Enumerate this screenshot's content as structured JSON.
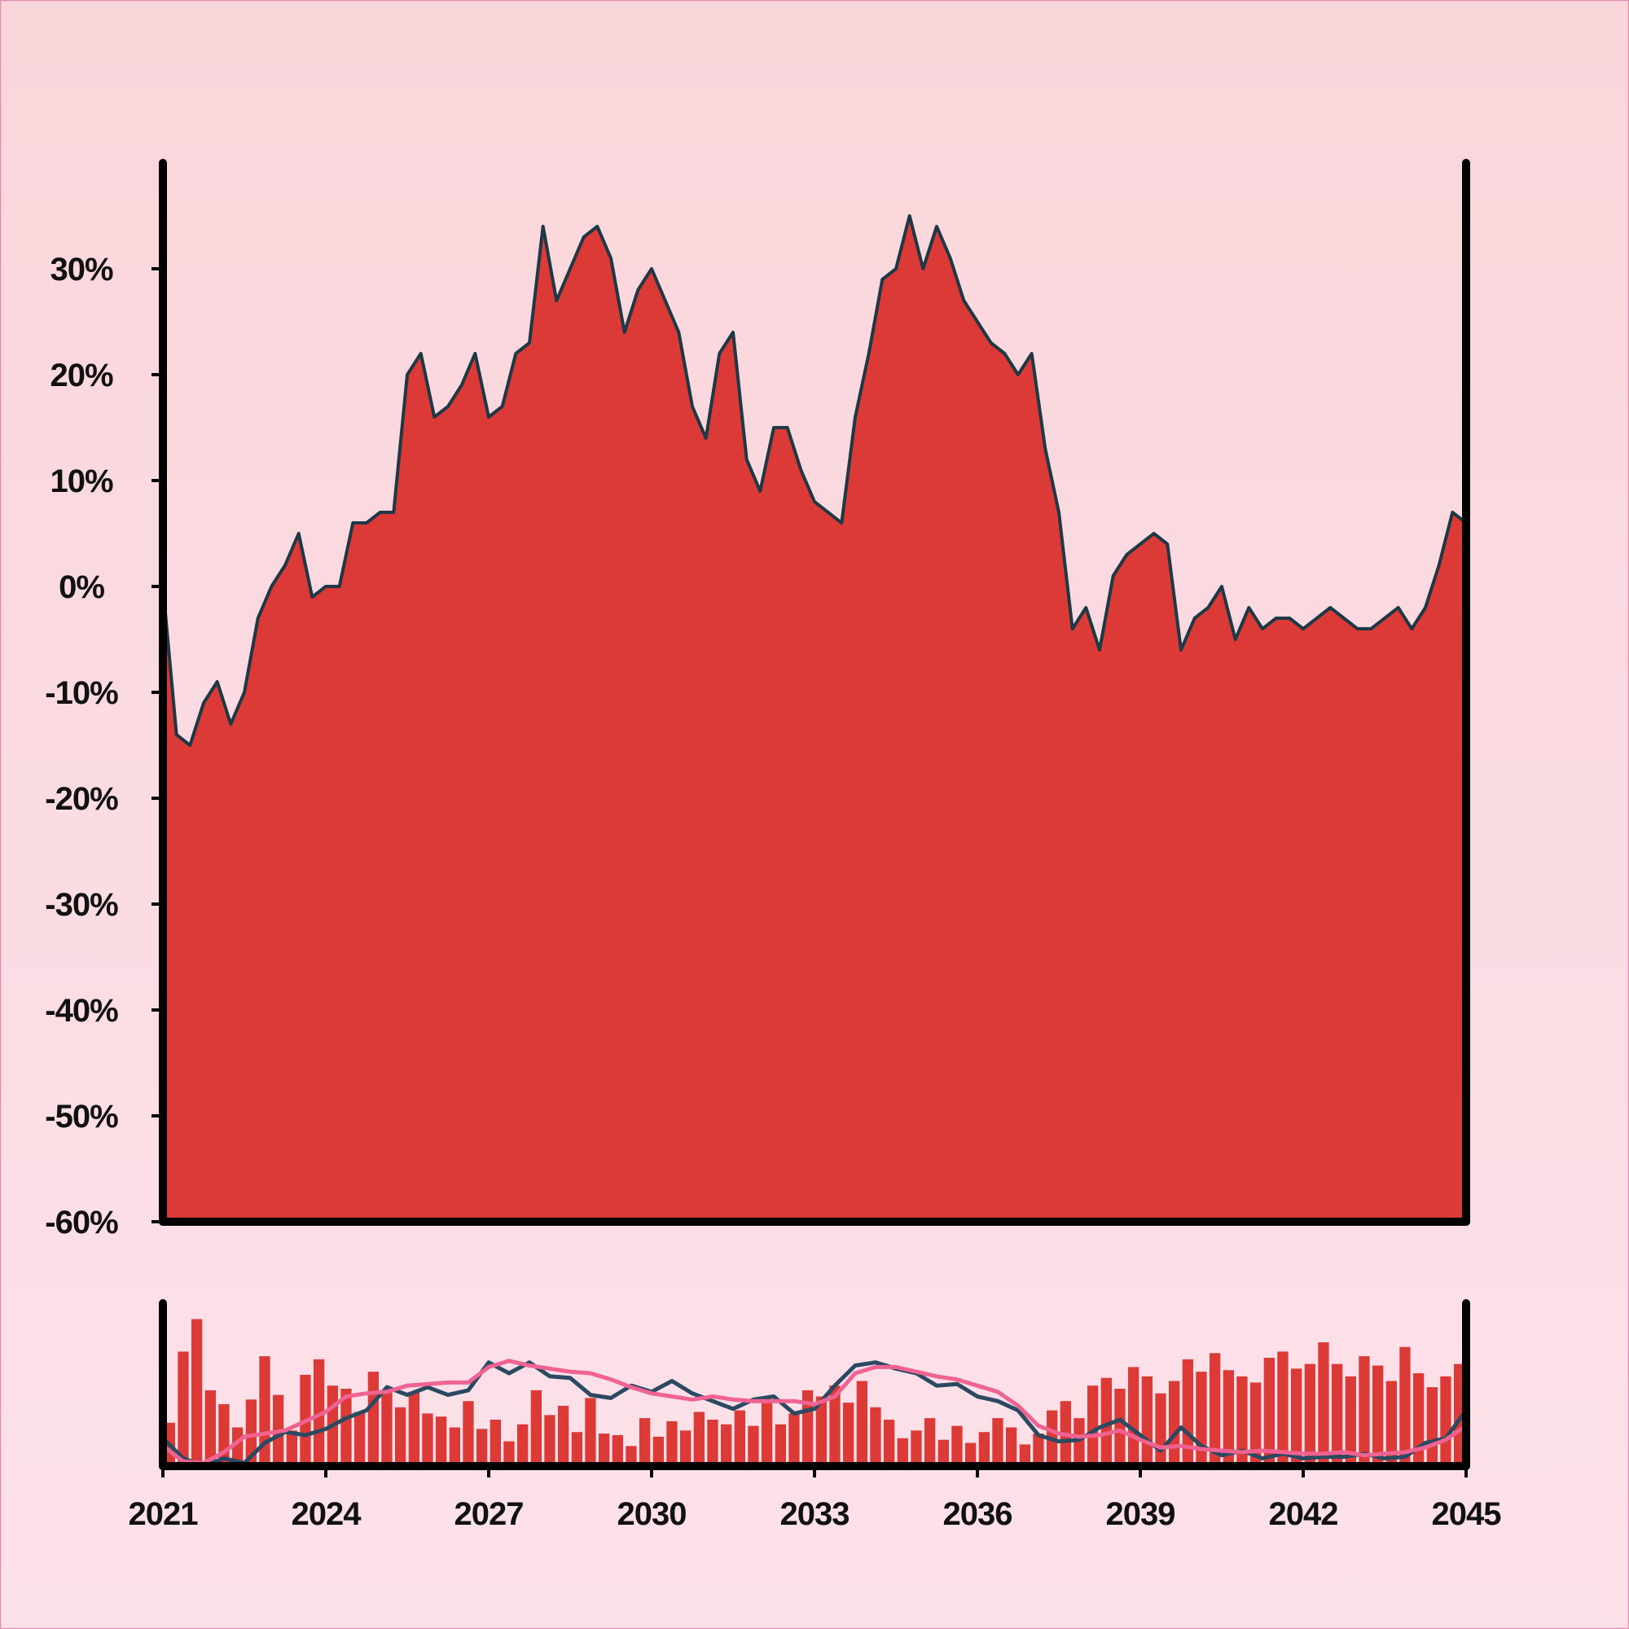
{
  "chart_data": [
    {
      "type": "area",
      "title": "",
      "xlabel": "",
      "ylabel": "",
      "xlim": [
        2021,
        2045
      ],
      "ylim": [
        -60,
        40
      ],
      "y_unit": "%",
      "y_ticks": [
        "-60%",
        "-50%",
        "-40%",
        "-30%",
        "-20%",
        "-10%",
        "0%",
        "10%",
        "20%",
        "30%"
      ],
      "y_tick_values": [
        -60,
        -50,
        -40,
        -30,
        -20,
        -10,
        0,
        10,
        20,
        30
      ],
      "grid": false,
      "legend": "none",
      "fill_color": "#db3a36",
      "line_color": "#1e3845",
      "series": [
        {
          "x": [
            2021.0,
            2021.25,
            2021.5,
            2021.75,
            2022.0,
            2022.25,
            2022.5,
            2022.75,
            2023.0,
            2023.25,
            2023.5,
            2023.75,
            2024.0,
            2024.25,
            2024.5,
            2024.75,
            2025.0,
            2025.25,
            2025.5,
            2025.75,
            2026.0,
            2026.25,
            2026.5,
            2026.75,
            2027.0,
            2027.25,
            2027.5,
            2027.75,
            2028.0,
            2028.25,
            2028.5,
            2028.75,
            2029.0,
            2029.25,
            2029.5,
            2029.75,
            2030.0,
            2030.25,
            2030.5,
            2030.75,
            2031.0,
            2031.25,
            2031.5,
            2031.75,
            2032.0,
            2032.25,
            2032.5,
            2032.75,
            2033.0,
            2033.25,
            2033.5,
            2033.75,
            2034.0,
            2034.25,
            2034.5,
            2034.75,
            2035.0,
            2035.25,
            2035.5,
            2035.75,
            2036.0,
            2036.25,
            2036.5,
            2036.75,
            2037.0,
            2037.25,
            2037.5,
            2037.75,
            2038.0,
            2038.25,
            2038.5,
            2038.75,
            2039.0,
            2039.25,
            2039.5,
            2039.75,
            2040.0,
            2040.25,
            2040.5,
            2040.75,
            2041.0,
            2041.25,
            2041.5,
            2041.75,
            2042.0,
            2042.25,
            2042.5,
            2042.75,
            2043.0,
            2043.25,
            2043.5,
            2043.75,
            2044.0,
            2044.25,
            2044.5,
            2044.75,
            2045.0
          ],
          "values": [
            0,
            -14,
            -15,
            -11,
            -9,
            -13,
            -10,
            -3,
            0,
            2,
            5,
            -1,
            0,
            0,
            6,
            6,
            7,
            7,
            20,
            22,
            16,
            17,
            19,
            22,
            16,
            17,
            22,
            23,
            34,
            27,
            30,
            33,
            34,
            31,
            24,
            28,
            30,
            27,
            24,
            17,
            14,
            22,
            24,
            12,
            9,
            15,
            15,
            11,
            8,
            7,
            6,
            16,
            22,
            29,
            30,
            35,
            30,
            34,
            31,
            27,
            25,
            23,
            22,
            20,
            22,
            13,
            7,
            -4,
            -2,
            -6,
            1,
            3,
            4,
            5,
            4,
            -6,
            -3,
            -2,
            0,
            -5,
            -2,
            -4,
            -3,
            -3,
            -4,
            -3,
            -2,
            -3,
            -4,
            -4,
            -3,
            -2,
            -4,
            -2,
            2,
            7,
            6
          ]
        }
      ]
    },
    {
      "type": "bar",
      "title": "",
      "xlabel": "",
      "ylabel": "",
      "xlim": [
        2021,
        2045
      ],
      "x_ticks": [
        "2021",
        "2024",
        "2027",
        "2030",
        "2033",
        "2036",
        "2039",
        "2042",
        "2045"
      ],
      "x_tick_values": [
        2021,
        2024,
        2027,
        2030,
        2033,
        2036,
        2039,
        2042,
        2045
      ],
      "ylim": [
        0,
        1
      ],
      "bar_color": "#db3a36",
      "bar_values": [
        0.28,
        0.74,
        0.95,
        0.49,
        0.4,
        0.25,
        0.43,
        0.71,
        0.46,
        0.23,
        0.59,
        0.69,
        0.52,
        0.5,
        0.35,
        0.61,
        0.49,
        0.38,
        0.48,
        0.34,
        0.32,
        0.25,
        0.42,
        0.24,
        0.3,
        0.16,
        0.27,
        0.49,
        0.33,
        0.39,
        0.22,
        0.44,
        0.21,
        0.2,
        0.13,
        0.31,
        0.19,
        0.29,
        0.23,
        0.35,
        0.3,
        0.27,
        0.36,
        0.26,
        0.43,
        0.27,
        0.34,
        0.49,
        0.45,
        0.52,
        0.41,
        0.55,
        0.38,
        0.3,
        0.18,
        0.23,
        0.31,
        0.17,
        0.26,
        0.15,
        0.22,
        0.31,
        0.25,
        0.14,
        0.21,
        0.36,
        0.42,
        0.31,
        0.52,
        0.57,
        0.5,
        0.64,
        0.58,
        0.47,
        0.55,
        0.69,
        0.61,
        0.73,
        0.62,
        0.58,
        0.54,
        0.7,
        0.74,
        0.63,
        0.66,
        0.8,
        0.66,
        0.58,
        0.71,
        0.65,
        0.55,
        0.77,
        0.6,
        0.51,
        0.58,
        0.66
      ],
      "series": [
        {
          "values": [
            0.18,
            0.05,
            0.0,
            0.05,
            0.02,
            0.15,
            0.22,
            0.2,
            0.24,
            0.31,
            0.36,
            0.51,
            0.46,
            0.51,
            0.46,
            0.49,
            0.67,
            0.6,
            0.67,
            0.58,
            0.57,
            0.46,
            0.44,
            0.52,
            0.48,
            0.55,
            0.47,
            0.42,
            0.37,
            0.43,
            0.45,
            0.34,
            0.37,
            0.52,
            0.65,
            0.67,
            0.63,
            0.6,
            0.52,
            0.53,
            0.45,
            0.42,
            0.36,
            0.2,
            0.16,
            0.17,
            0.25,
            0.3,
            0.2,
            0.1,
            0.25,
            0.13,
            0.07,
            0.1,
            0.05,
            0.08,
            0.05,
            0.06,
            0.06,
            0.08,
            0.05,
            0.06,
            0.15,
            0.18,
            0.36
          ]
        },
        {
          "values": [
            0.13,
            0.03,
            0.02,
            0.09,
            0.19,
            0.21,
            0.23,
            0.29,
            0.35,
            0.45,
            0.47,
            0.48,
            0.52,
            0.53,
            0.54,
            0.54,
            0.64,
            0.68,
            0.65,
            0.63,
            0.61,
            0.6,
            0.56,
            0.51,
            0.47,
            0.45,
            0.43,
            0.45,
            0.43,
            0.42,
            0.42,
            0.42,
            0.4,
            0.45,
            0.6,
            0.64,
            0.64,
            0.61,
            0.58,
            0.56,
            0.52,
            0.48,
            0.39,
            0.26,
            0.21,
            0.19,
            0.2,
            0.23,
            0.17,
            0.12,
            0.13,
            0.11,
            0.1,
            0.09,
            0.1,
            0.09,
            0.08,
            0.08,
            0.09,
            0.07,
            0.08,
            0.09,
            0.12,
            0.17,
            0.26
          ]
        }
      ],
      "series_colors": [
        "#2b4a62",
        "#f06292"
      ]
    }
  ]
}
